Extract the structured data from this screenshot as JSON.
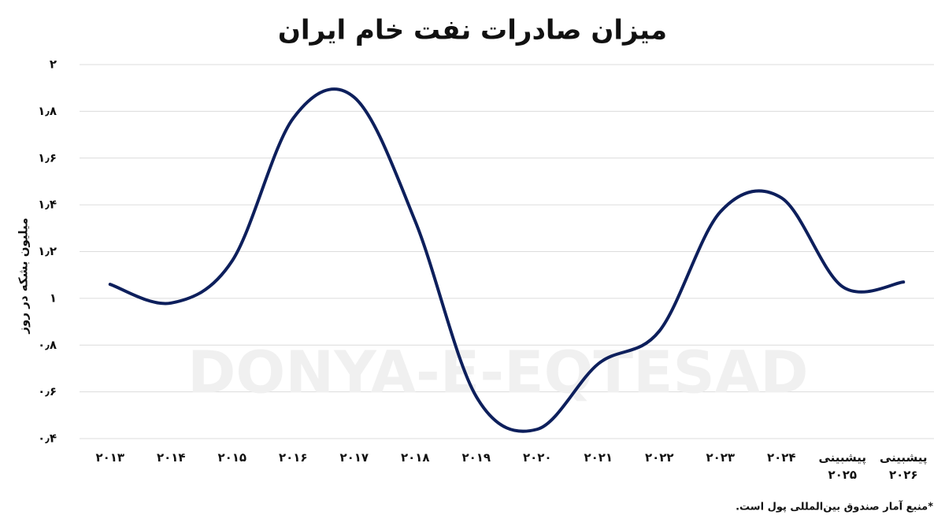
{
  "chart_data": {
    "type": "line",
    "title": "میزان صادرات نفت خام ایران",
    "y_label": "میلیون بشکه در روز",
    "footnote": "*منبع آمار صندوق بین‌المللی پول است.",
    "watermark": "DONYA-E-EQTESAD",
    "categories": [
      "۲۰۱۳",
      "۲۰۱۴",
      "۲۰۱۵",
      "۲۰۱۶",
      "۲۰۱۷",
      "۲۰۱۸",
      "۲۰۱۹",
      "۲۰۲۰",
      "۲۰۲۱",
      "۲۰۲۲",
      "۲۰۲۳",
      "۲۰۲۴",
      "پیشبینی ۲۰۲۵",
      "پیشبینی ۲۰۲۶"
    ],
    "values": [
      1.06,
      0.98,
      1.16,
      1.77,
      1.86,
      1.33,
      0.58,
      0.44,
      0.72,
      0.86,
      1.37,
      1.43,
      1.05,
      1.07
    ],
    "color": "#0d1f5c",
    "ylim": [
      0.4,
      2
    ],
    "yticks": [
      {
        "value": 0.4,
        "label": "۰٫۴"
      },
      {
        "value": 0.6,
        "label": "۰٫۶"
      },
      {
        "value": 0.8,
        "label": "۰٫۸"
      },
      {
        "value": 1,
        "label": "۱"
      },
      {
        "value": 1.2,
        "label": "۱٫۲"
      },
      {
        "value": 1.4,
        "label": "۱٫۴"
      },
      {
        "value": 1.6,
        "label": "۱٫۶"
      },
      {
        "value": 1.8,
        "label": "۱٫۸"
      },
      {
        "value": 2,
        "label": "۲"
      }
    ],
    "grid": true
  }
}
